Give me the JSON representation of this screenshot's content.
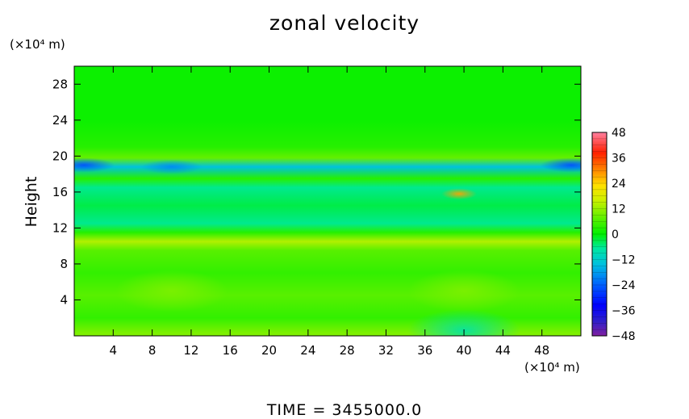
{
  "chart_data": {
    "type": "heatmap",
    "title": "zonal velocity",
    "ylabel": "Height",
    "xlabel": "",
    "x_unit": "(×10⁴ m)",
    "y_unit": "(×10⁴ m)",
    "xlim": [
      0,
      52
    ],
    "ylim": [
      0,
      30
    ],
    "x_ticks": [
      4,
      8,
      12,
      16,
      20,
      24,
      28,
      32,
      36,
      40,
      44,
      48
    ],
    "y_ticks": [
      4,
      8,
      12,
      16,
      20,
      24,
      28
    ],
    "colorbar": {
      "range": [
        -48,
        48
      ],
      "ticks": [
        48,
        36,
        24,
        12,
        0,
        -12,
        -24,
        -36,
        -48
      ]
    },
    "bands": [
      {
        "y": 0.3,
        "value": 10
      },
      {
        "y": 2.0,
        "value": 4
      },
      {
        "y": 4.5,
        "value": 7
      },
      {
        "y": 7.0,
        "value": 4
      },
      {
        "y": 9.5,
        "value": 7
      },
      {
        "y": 10.5,
        "value": 14
      },
      {
        "y": 11.5,
        "value": 3
      },
      {
        "y": 12.5,
        "value": -6
      },
      {
        "y": 14.5,
        "value": -3
      },
      {
        "y": 16.5,
        "value": -6
      },
      {
        "y": 17.5,
        "value": 3
      },
      {
        "y": 18.8,
        "value": -14
      },
      {
        "y": 19.8,
        "value": 8
      },
      {
        "y": 21.0,
        "value": 3
      },
      {
        "y": 24.0,
        "value": 1
      },
      {
        "y": 29.5,
        "value": 1
      }
    ],
    "features": [
      {
        "x": 10,
        "y": 5,
        "value": 10
      },
      {
        "x": 40,
        "y": 5,
        "value": 10
      },
      {
        "x": 39.5,
        "y": 15.8,
        "value": 28
      },
      {
        "x": 1,
        "y": 19,
        "value": -26
      },
      {
        "x": 51,
        "y": 19,
        "value": -26
      },
      {
        "x": 10,
        "y": 18.8,
        "value": -20
      },
      {
        "x": 40,
        "y": 0.6,
        "value": -8
      }
    ]
  },
  "footer": {
    "time_label": "TIME  =  3455000.0"
  },
  "colors": {
    "background": "#ffffff",
    "axes": "#000000"
  }
}
